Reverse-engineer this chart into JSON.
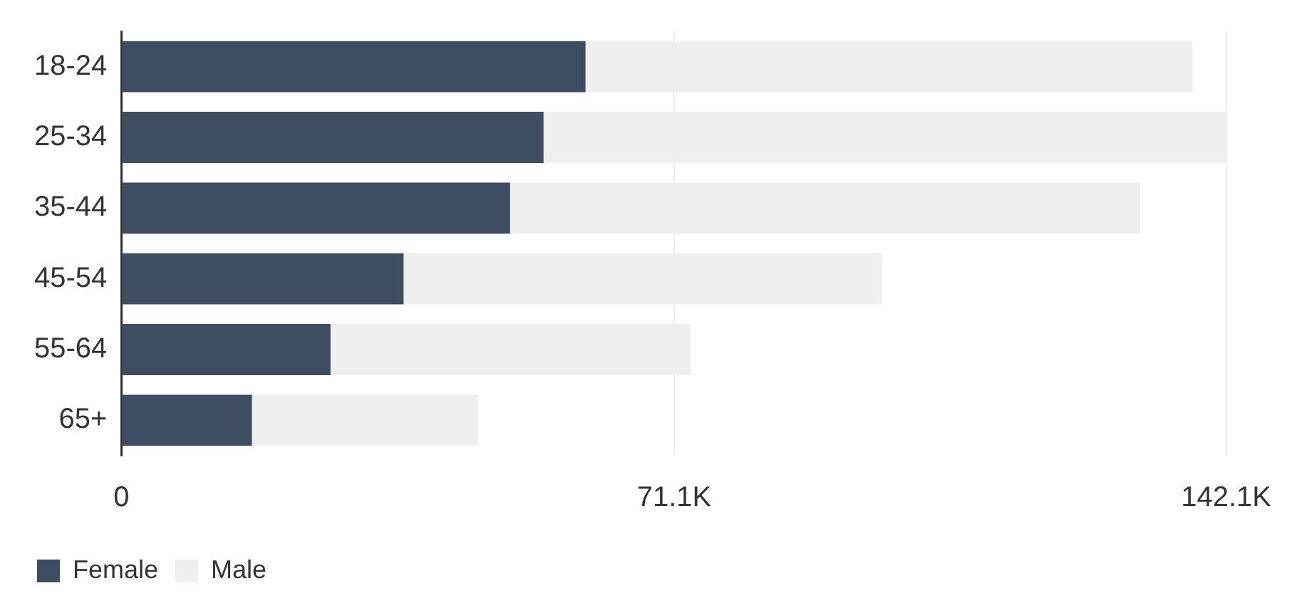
{
  "chart_data": {
    "type": "bar",
    "orientation": "horizontal",
    "stacked": true,
    "categories": [
      "18-24",
      "25-34",
      "35-44",
      "45-54",
      "55-64",
      "65+"
    ],
    "series": [
      {
        "name": "Female",
        "color": "#3f4d63",
        "values": [
          59.7,
          54.3,
          50.0,
          36.3,
          26.9,
          16.8
        ]
      },
      {
        "name": "Male",
        "color": "#efefef",
        "values": [
          78.1,
          87.8,
          81.0,
          61.5,
          46.3,
          29.0
        ]
      }
    ],
    "xlim": [
      0,
      142.1
    ],
    "xticks": [
      0,
      {
        "value": 71.1,
        "label": "71.1K"
      },
      {
        "value": 142.1,
        "label": "142.1K"
      }
    ],
    "grid": "x",
    "legend": "bottom left"
  }
}
